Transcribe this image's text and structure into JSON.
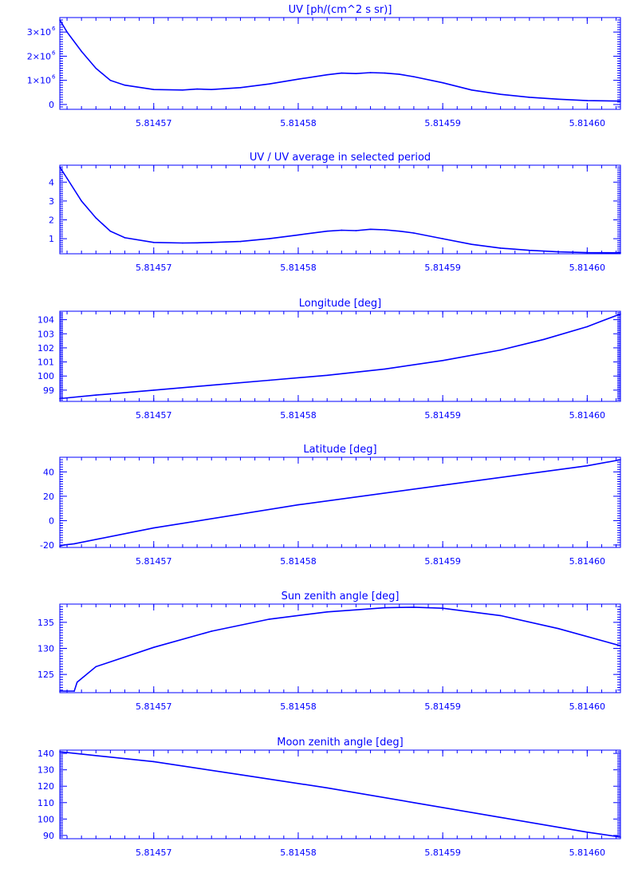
{
  "style": {
    "color": "#0000ff",
    "background": "#ffffff"
  },
  "x_tick_labels": [
    "5.81457",
    "5.81458",
    "5.81459",
    "5.81460"
  ],
  "chart_data": [
    {
      "type": "line",
      "title": "UV [ph/(cm^2 s sr)]",
      "xlabel": "",
      "ylabel": "",
      "xlim": [
        5.8145635,
        5.8146023
      ],
      "ylim": [
        -200000,
        3600000
      ],
      "yticks": [
        {
          "value": 0,
          "label": "0"
        },
        {
          "value": 1000000,
          "label": "1×10",
          "exp": "6"
        },
        {
          "value": 2000000,
          "label": "2×10",
          "exp": "6"
        },
        {
          "value": 3000000,
          "label": "3×10",
          "exp": "6"
        }
      ],
      "x": [
        5.8145635,
        5.814564,
        5.814565,
        5.814566,
        5.814567,
        5.814568,
        5.81457,
        5.814572,
        5.814573,
        5.814574,
        5.814576,
        5.814578,
        5.81458,
        5.814582,
        5.814583,
        5.814584,
        5.814585,
        5.814586,
        5.814587,
        5.814588,
        5.81459,
        5.814592,
        5.814594,
        5.814596,
        5.814598,
        5.8146,
        5.8146023
      ],
      "values": [
        3500000,
        3000000,
        2200000,
        1500000,
        1000000,
        800000,
        620000,
        600000,
        640000,
        620000,
        700000,
        850000,
        1050000,
        1230000,
        1300000,
        1280000,
        1320000,
        1300000,
        1250000,
        1150000,
        900000,
        600000,
        420000,
        300000,
        220000,
        160000,
        140000
      ]
    },
    {
      "type": "line",
      "title": "UV / UV average in selected period",
      "xlabel": "",
      "ylabel": "",
      "xlim": [
        5.8145635,
        5.8146023
      ],
      "ylim": [
        0.2,
        4.9
      ],
      "yticks": [
        {
          "value": 1,
          "label": "1"
        },
        {
          "value": 2,
          "label": "2"
        },
        {
          "value": 3,
          "label": "3"
        },
        {
          "value": 4,
          "label": "4"
        }
      ],
      "x": [
        5.8145635,
        5.814564,
        5.814565,
        5.814566,
        5.814567,
        5.814568,
        5.81457,
        5.814572,
        5.814573,
        5.814574,
        5.814576,
        5.814578,
        5.81458,
        5.814582,
        5.814583,
        5.814584,
        5.814585,
        5.814586,
        5.814587,
        5.814588,
        5.81459,
        5.814592,
        5.814594,
        5.814596,
        5.814598,
        5.8146,
        5.8146023
      ],
      "values": [
        4.8,
        4.2,
        3.0,
        2.1,
        1.4,
        1.05,
        0.8,
        0.77,
        0.78,
        0.8,
        0.85,
        1.0,
        1.2,
        1.4,
        1.45,
        1.43,
        1.5,
        1.47,
        1.4,
        1.3,
        1.0,
        0.7,
        0.5,
        0.38,
        0.3,
        0.26,
        0.25
      ]
    },
    {
      "type": "line",
      "title": "Longitude [deg]",
      "xlabel": "",
      "ylabel": "",
      "xlim": [
        5.8145635,
        5.8146023
      ],
      "ylim": [
        98.2,
        104.6
      ],
      "yticks": [
        {
          "value": 99,
          "label": "99"
        },
        {
          "value": 100,
          "label": "100"
        },
        {
          "value": 101,
          "label": "101"
        },
        {
          "value": 102,
          "label": "102"
        },
        {
          "value": 103,
          "label": "103"
        },
        {
          "value": 104,
          "label": "104"
        }
      ],
      "x": [
        5.8145635,
        5.814566,
        5.81457,
        5.814574,
        5.814578,
        5.814582,
        5.814586,
        5.81459,
        5.814594,
        5.814597,
        5.8146,
        5.814601,
        5.8146023
      ],
      "values": [
        98.4,
        98.65,
        99.0,
        99.35,
        99.7,
        100.05,
        100.5,
        101.1,
        101.85,
        102.6,
        103.5,
        103.9,
        104.4
      ]
    },
    {
      "type": "line",
      "title": "Latitude [deg]",
      "xlabel": "",
      "ylabel": "",
      "xlim": [
        5.8145635,
        5.8146023
      ],
      "ylim": [
        -22,
        52
      ],
      "yticks": [
        {
          "value": -20,
          "label": "-20"
        },
        {
          "value": 0,
          "label": "0"
        },
        {
          "value": 20,
          "label": "20"
        },
        {
          "value": 40,
          "label": "40"
        }
      ],
      "x": [
        5.8145635,
        5.8145638,
        5.8145645,
        5.81457,
        5.81458,
        5.81459,
        5.8146,
        5.8146023
      ],
      "values": [
        -21,
        -20,
        -19,
        -6,
        13,
        29,
        45,
        50
      ]
    },
    {
      "type": "line",
      "title": "Sun zenith angle [deg]",
      "xlabel": "",
      "ylabel": "",
      "xlim": [
        5.8145635,
        5.8146023
      ],
      "ylim": [
        121.5,
        138.5
      ],
      "yticks": [
        {
          "value": 125,
          "label": "125"
        },
        {
          "value": 130,
          "label": "130"
        },
        {
          "value": 135,
          "label": "135"
        }
      ],
      "x": [
        5.8145635,
        5.8145645,
        5.8145647,
        5.814566,
        5.81457,
        5.814574,
        5.814578,
        5.814582,
        5.814586,
        5.814588,
        5.81459,
        5.814594,
        5.814598,
        5.8146023
      ],
      "values": [
        121.8,
        121.8,
        123.5,
        126.5,
        130.2,
        133.3,
        135.6,
        137.0,
        137.8,
        137.9,
        137.7,
        136.3,
        133.8,
        130.5
      ]
    },
    {
      "type": "line",
      "title": "Moon zenith angle [deg]",
      "xlabel": "",
      "ylabel": "",
      "xlim": [
        5.8145635,
        5.8146023
      ],
      "ylim": [
        88,
        142
      ],
      "yticks": [
        {
          "value": 90,
          "label": "90"
        },
        {
          "value": 100,
          "label": "100"
        },
        {
          "value": 110,
          "label": "110"
        },
        {
          "value": 120,
          "label": "120"
        },
        {
          "value": 130,
          "label": "130"
        },
        {
          "value": 140,
          "label": "140"
        }
      ],
      "x": [
        5.8145635,
        5.81457,
        5.814576,
        5.814582,
        5.814588,
        5.814594,
        5.8146,
        5.8146023
      ],
      "values": [
        141,
        135,
        127,
        119,
        110,
        101,
        92,
        89
      ]
    }
  ]
}
